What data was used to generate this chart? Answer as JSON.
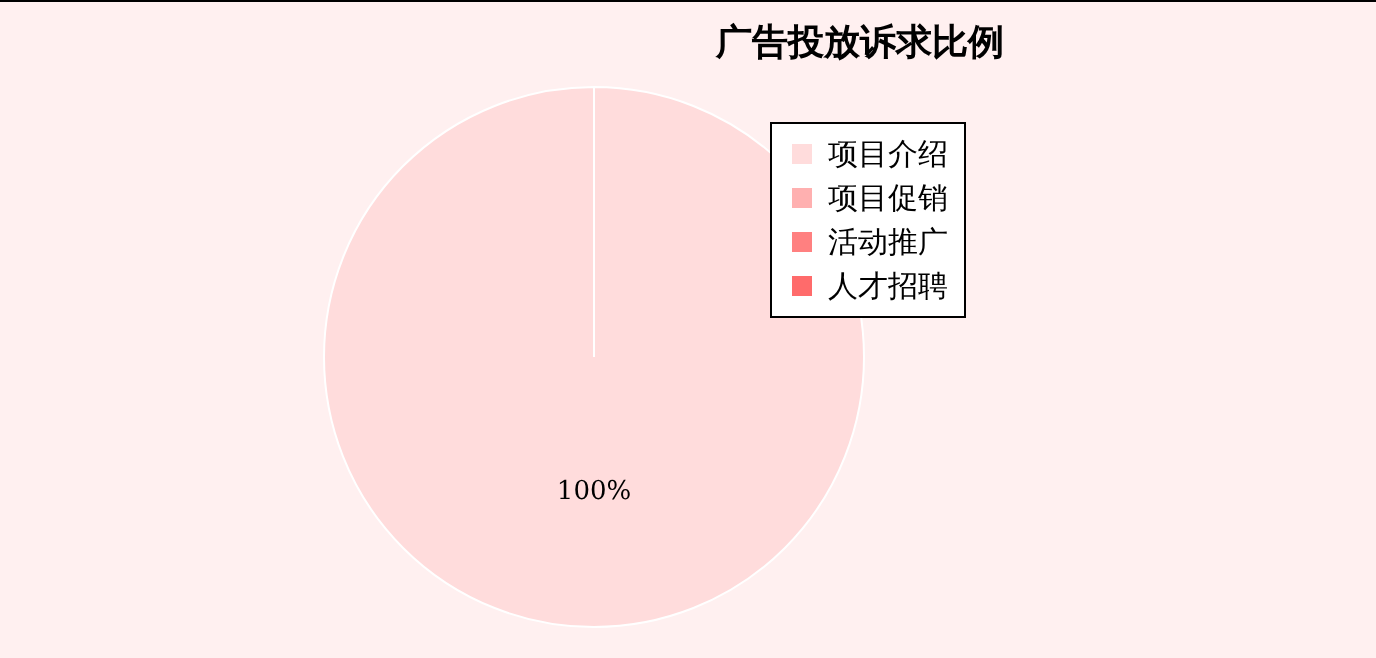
{
  "chart_data": {
    "type": "pie",
    "title": "广告投放诉求比例",
    "categories": [
      "项目介绍",
      "项目促销",
      "活动推广",
      "人才招聘"
    ],
    "values": [
      100,
      0,
      0,
      0
    ],
    "colors": [
      "#ffdcdc",
      "#ffb0b0",
      "#ff8080",
      "#ff6b6b"
    ],
    "value_labels": [
      "100%",
      null,
      null,
      null
    ],
    "legend": "top right"
  }
}
